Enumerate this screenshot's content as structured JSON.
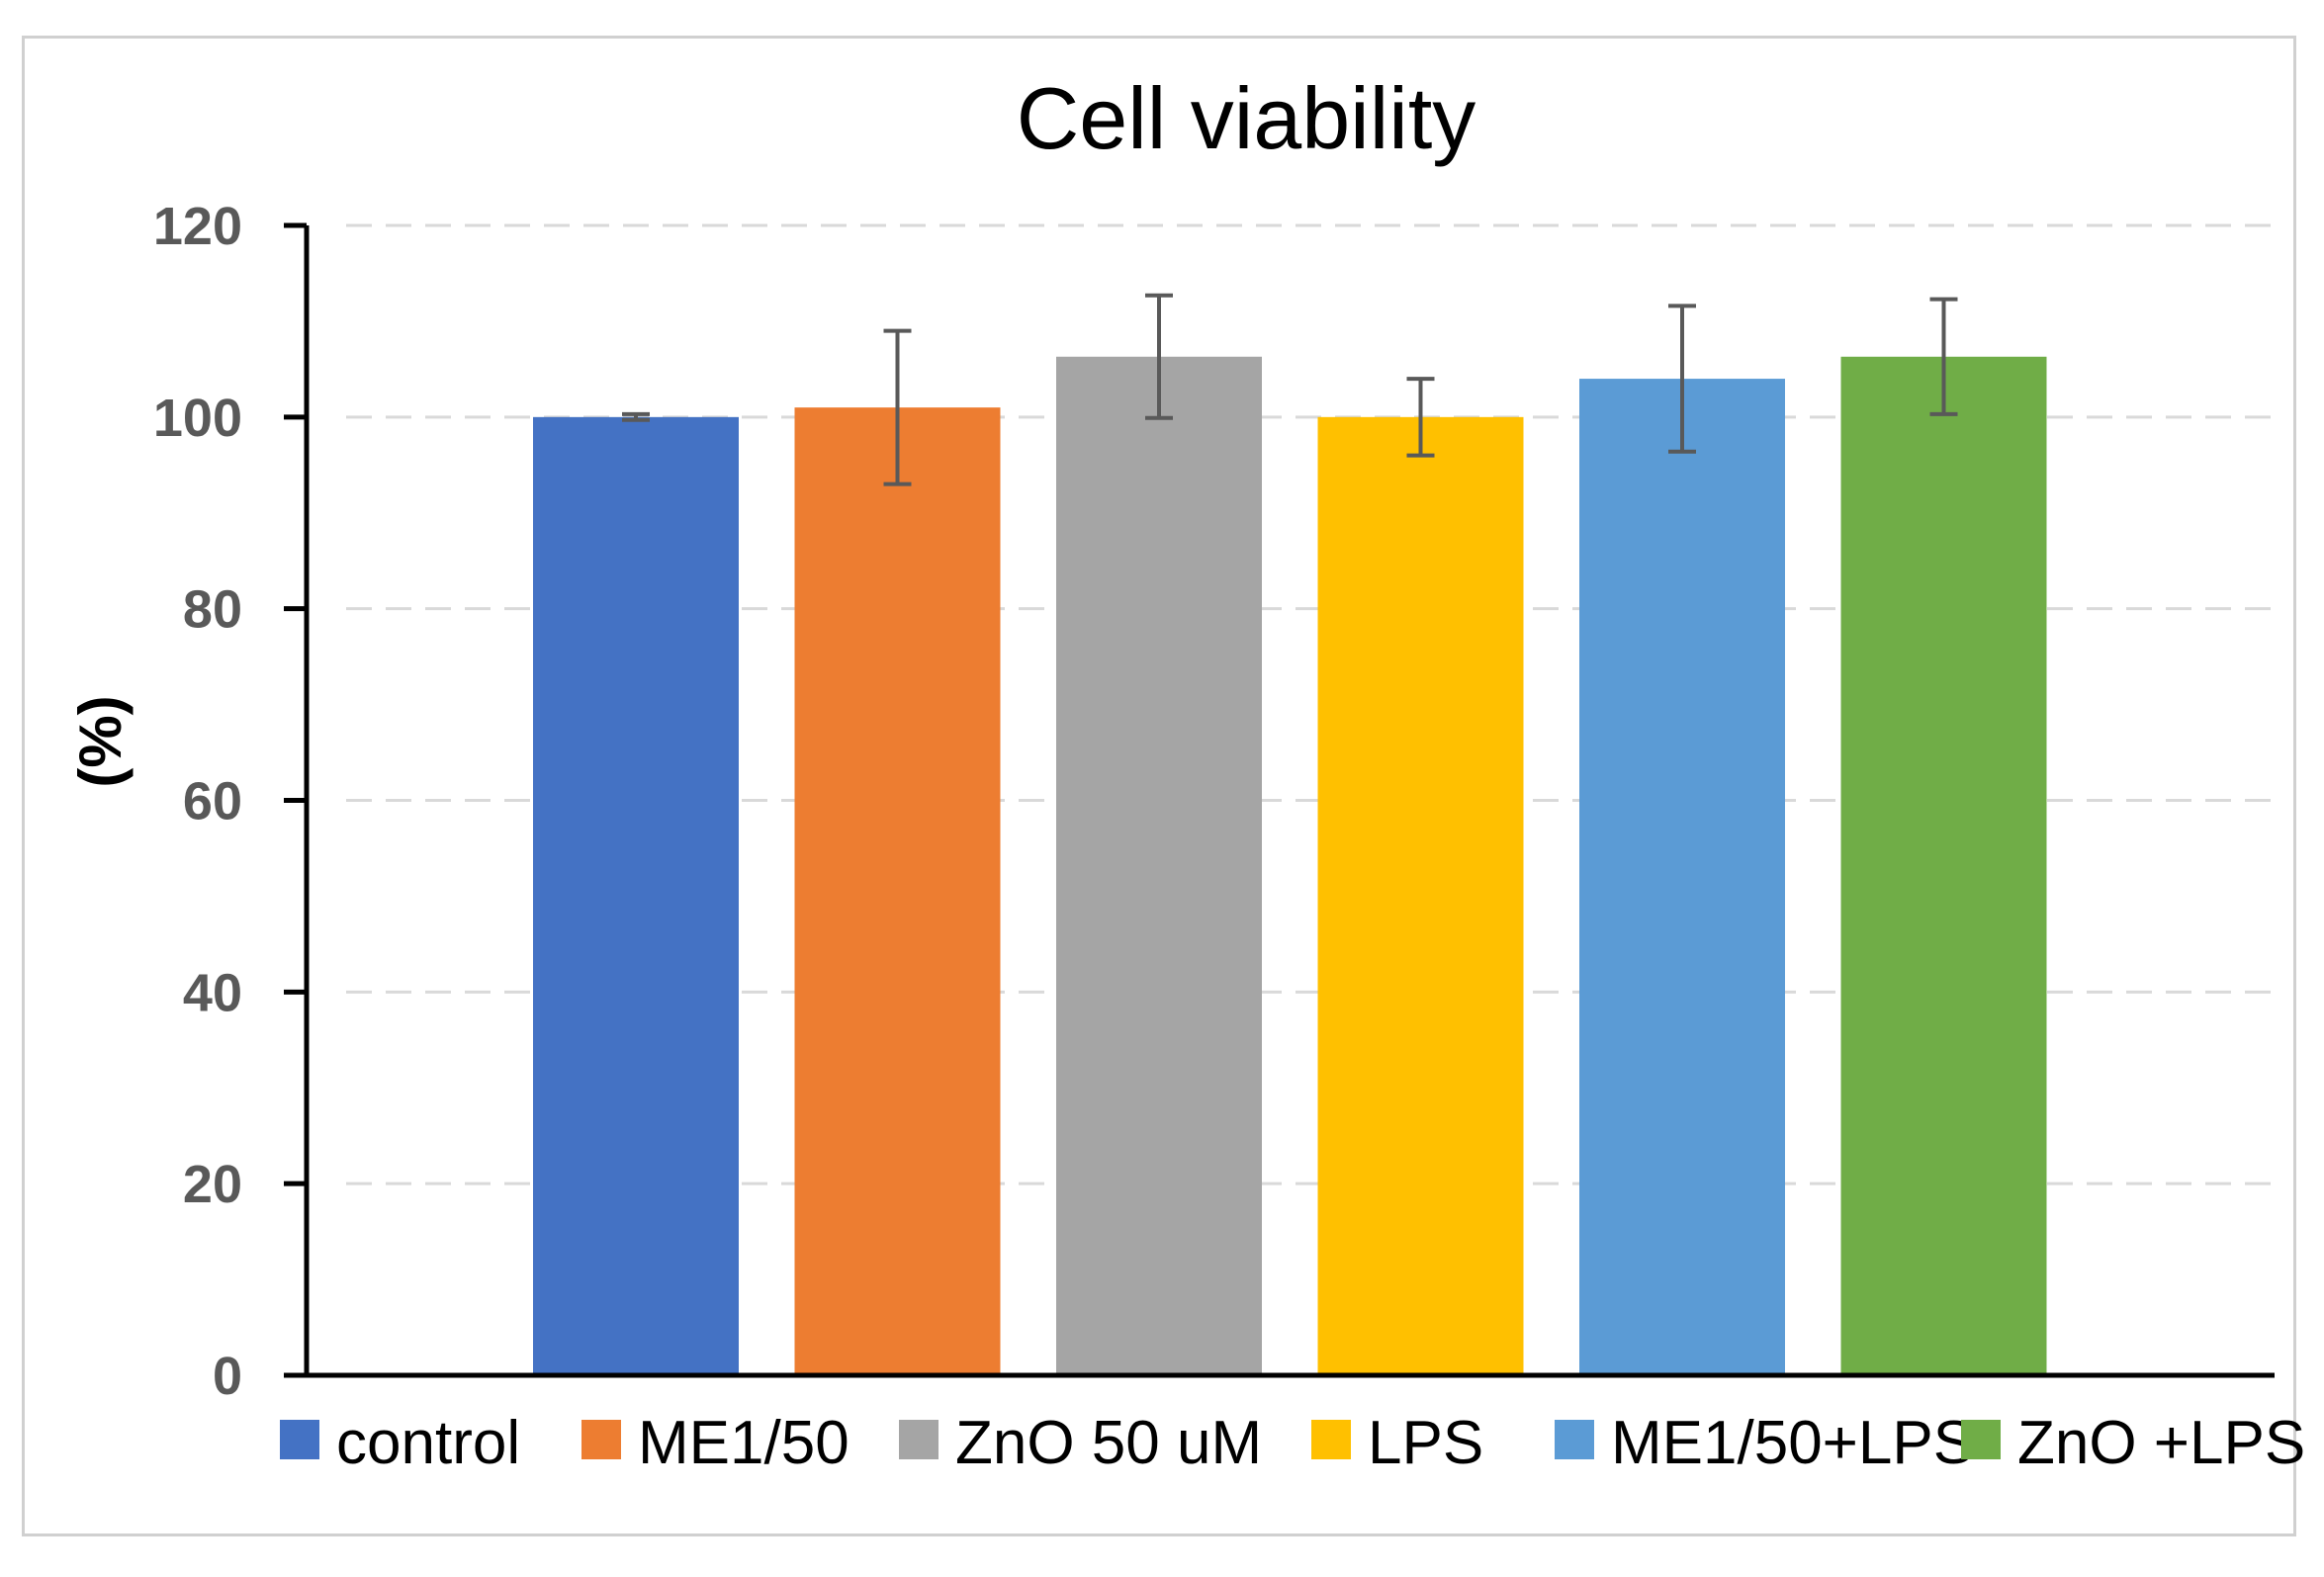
{
  "chart_data": {
    "type": "bar",
    "title": "Cell viability",
    "ylabel": "(%)",
    "xlabel": "",
    "ylim": [
      0,
      120
    ],
    "yticks": [
      0,
      20,
      40,
      60,
      80,
      100,
      120
    ],
    "grid": true,
    "legend_position": "bottom",
    "series": [
      {
        "name": "control",
        "value": 100,
        "error": 0.3,
        "color": "#4472c4"
      },
      {
        "name": "ME1/50",
        "value": 101,
        "error": 8,
        "color": "#ed7d31"
      },
      {
        "name": "ZnO 50 uM",
        "value": 106.3,
        "error": 6.4,
        "color": "#a5a5a5"
      },
      {
        "name": "LPS",
        "value": 100,
        "error": 4,
        "color": "#ffc000"
      },
      {
        "name": "ME1/50+LPS",
        "value": 104,
        "error": 7.6,
        "color": "#5b9bd5"
      },
      {
        "name": "ZnO +LPS",
        "value": 106.3,
        "error": 6,
        "color": "#70ad47"
      }
    ]
  }
}
